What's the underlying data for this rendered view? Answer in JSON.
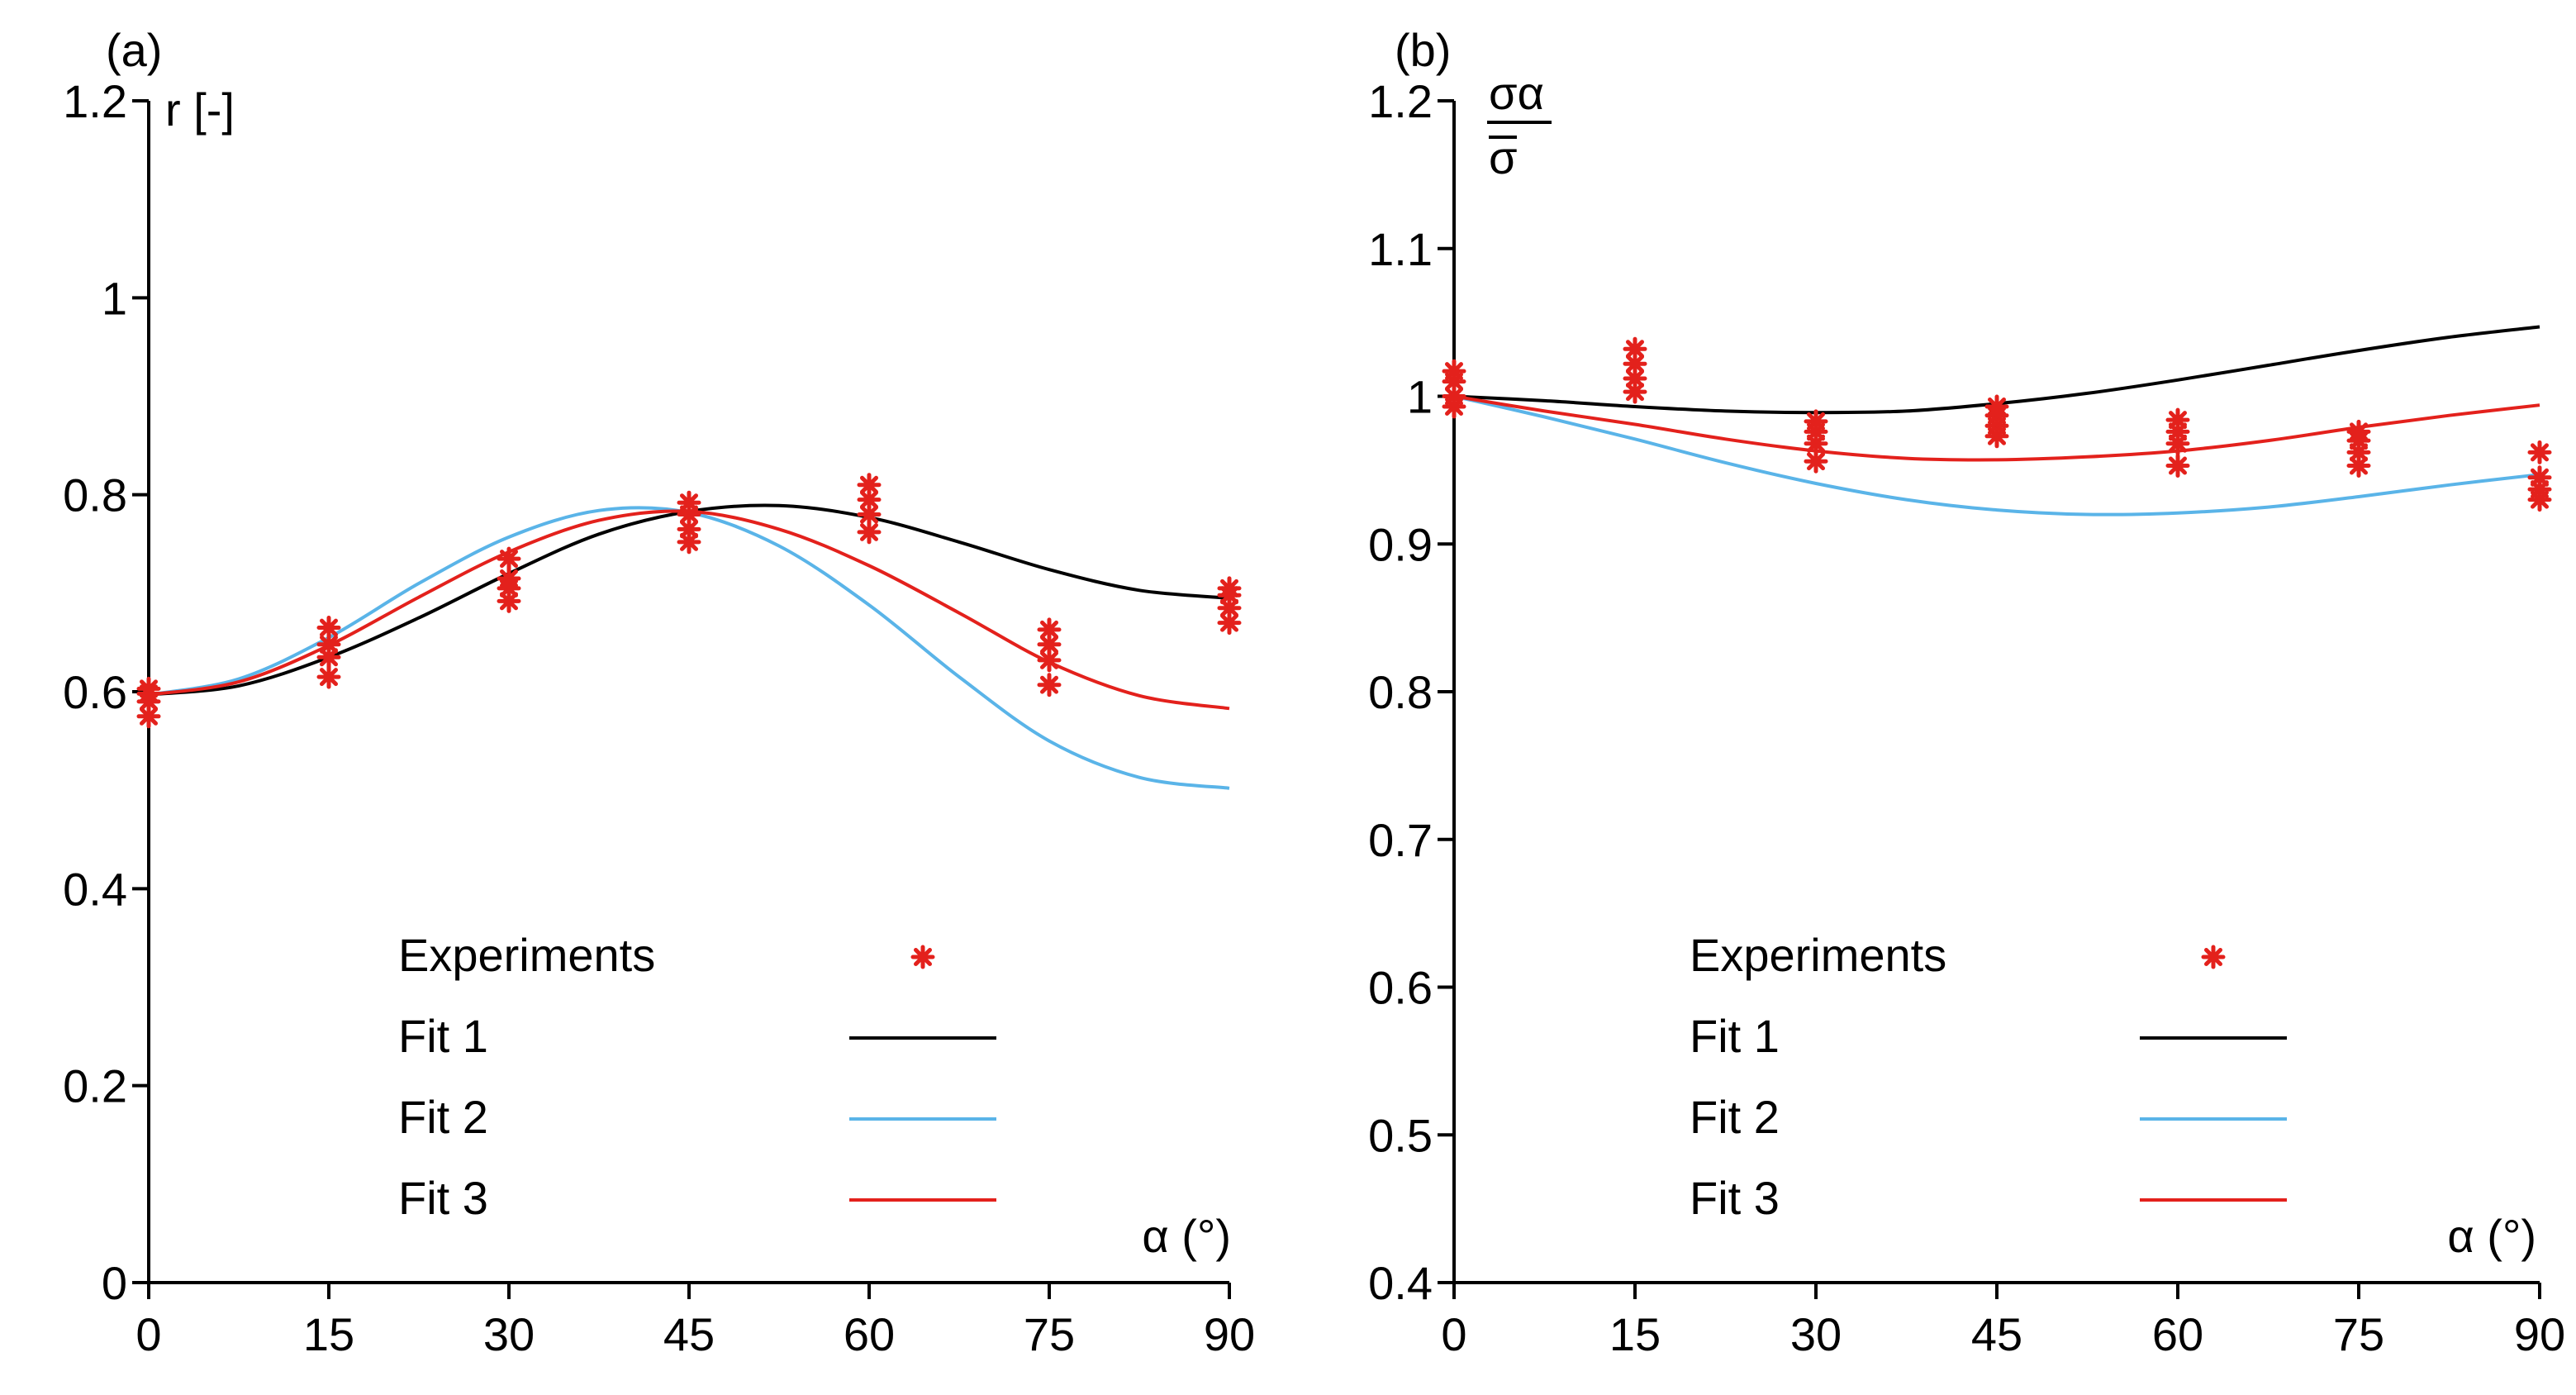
{
  "colors": {
    "experiments": "#e3211c",
    "fit1": "#000000",
    "fit2": "#5ab4e8",
    "fit3": "#e3211c",
    "axis": "#000000"
  },
  "chart_data": [
    {
      "type": "line",
      "panel_label": "(a)",
      "ylabel": "r [-]",
      "xlabel": "α (°)",
      "xlim": [
        0,
        90
      ],
      "ylim": [
        0,
        1.2
      ],
      "x_ticks": [
        0,
        15,
        30,
        45,
        60,
        75,
        90
      ],
      "x_tick_labels": [
        "0",
        "15",
        "30",
        "45",
        "60",
        "75",
        "90"
      ],
      "y_ticks": [
        0,
        0.2,
        0.4,
        0.6,
        0.8,
        1.0,
        1.2
      ],
      "y_tick_labels": [
        "0",
        "0.2",
        "0.4",
        "0.6",
        "0.8",
        "1",
        "1.2"
      ],
      "legend": {
        "placement": "bottom-center",
        "entries": [
          {
            "label": "Experiments",
            "kind": "marker",
            "color_key": "experiments"
          },
          {
            "label": "Fit 1",
            "kind": "line",
            "color_key": "fit1"
          },
          {
            "label": "Fit 2",
            "kind": "line",
            "color_key": "fit2"
          },
          {
            "label": "Fit 3",
            "kind": "line",
            "color_key": "fit3"
          }
        ]
      },
      "experiments": {
        "name": "Experiments",
        "x": [
          0,
          0,
          0,
          0,
          15,
          15,
          15,
          15,
          30,
          30,
          30,
          30,
          45,
          45,
          45,
          45,
          60,
          60,
          60,
          60,
          75,
          75,
          75,
          75,
          90,
          90,
          90,
          90
        ],
        "y": [
          0.575,
          0.59,
          0.598,
          0.603,
          0.615,
          0.635,
          0.648,
          0.665,
          0.692,
          0.705,
          0.715,
          0.735,
          0.752,
          0.765,
          0.78,
          0.792,
          0.762,
          0.78,
          0.795,
          0.81,
          0.607,
          0.632,
          0.648,
          0.663,
          0.67,
          0.685,
          0.698,
          0.705
        ]
      },
      "series": [
        {
          "name": "Fit 1",
          "color_key": "fit1",
          "x": [
            0,
            7.5,
            15,
            22.5,
            30,
            37.5,
            45,
            52.5,
            60,
            67.5,
            75,
            82.5,
            90
          ],
          "y": [
            0.597,
            0.606,
            0.635,
            0.675,
            0.72,
            0.76,
            0.783,
            0.789,
            0.777,
            0.752,
            0.724,
            0.703,
            0.695
          ]
        },
        {
          "name": "Fit 2",
          "color_key": "fit2",
          "x": [
            0,
            7.5,
            15,
            22.5,
            30,
            37.5,
            45,
            52.5,
            60,
            67.5,
            75,
            82.5,
            90
          ],
          "y": [
            0.597,
            0.613,
            0.655,
            0.71,
            0.757,
            0.784,
            0.782,
            0.748,
            0.688,
            0.615,
            0.55,
            0.513,
            0.502
          ]
        },
        {
          "name": "Fit 3",
          "color_key": "fit3",
          "x": [
            0,
            7.5,
            15,
            22.5,
            30,
            37.5,
            45,
            52.5,
            60,
            67.5,
            75,
            82.5,
            90
          ],
          "y": [
            0.597,
            0.61,
            0.647,
            0.696,
            0.742,
            0.774,
            0.783,
            0.765,
            0.728,
            0.68,
            0.63,
            0.596,
            0.583
          ]
        }
      ]
    },
    {
      "type": "line",
      "panel_label": "(b)",
      "ylabel_num": "σα",
      "ylabel_den": "σ",
      "xlabel": "α (°)",
      "xlim": [
        0,
        90
      ],
      "ylim": [
        0.4,
        1.2
      ],
      "x_ticks": [
        0,
        15,
        30,
        45,
        60,
        75,
        90
      ],
      "x_tick_labels": [
        "0",
        "15",
        "30",
        "45",
        "60",
        "75",
        "90"
      ],
      "y_ticks": [
        0.4,
        0.5,
        0.6,
        0.7,
        0.8,
        0.9,
        1.0,
        1.1,
        1.2
      ],
      "y_tick_labels": [
        "0.4",
        "0.5",
        "0.6",
        "0.7",
        "0.8",
        "0.9",
        "1",
        "1.1",
        "1.2"
      ],
      "legend": {
        "placement": "bottom-center",
        "entries": [
          {
            "label": "Experiments",
            "kind": "marker",
            "color_key": "experiments"
          },
          {
            "label": "Fit 1",
            "kind": "line",
            "color_key": "fit1"
          },
          {
            "label": "Fit 2",
            "kind": "line",
            "color_key": "fit2"
          },
          {
            "label": "Fit 3",
            "kind": "line",
            "color_key": "fit3"
          }
        ]
      },
      "experiments": {
        "name": "Experiments",
        "x": [
          0,
          0,
          0,
          0,
          15,
          15,
          15,
          15,
          30,
          30,
          30,
          30,
          45,
          45,
          45,
          45,
          60,
          60,
          60,
          60,
          75,
          75,
          75,
          75,
          90,
          90,
          90,
          90
        ],
        "y": [
          0.993,
          1.0,
          1.01,
          1.017,
          1.003,
          1.012,
          1.022,
          1.032,
          0.956,
          0.968,
          0.976,
          0.983,
          0.973,
          0.98,
          0.987,
          0.993,
          0.953,
          0.968,
          0.976,
          0.984,
          0.953,
          0.962,
          0.97,
          0.976,
          0.93,
          0.937,
          0.945,
          0.962
        ]
      },
      "series": [
        {
          "name": "Fit 1",
          "color_key": "fit1",
          "x": [
            0,
            7.5,
            15,
            22.5,
            30,
            37.5,
            45,
            52.5,
            60,
            67.5,
            75,
            82.5,
            90
          ],
          "y": [
            1.0,
            0.997,
            0.993,
            0.99,
            0.989,
            0.99,
            0.995,
            1.002,
            1.011,
            1.021,
            1.031,
            1.04,
            1.047
          ]
        },
        {
          "name": "Fit 2",
          "color_key": "fit2",
          "x": [
            0,
            7.5,
            15,
            22.5,
            30,
            37.5,
            45,
            52.5,
            60,
            67.5,
            75,
            82.5,
            90
          ],
          "y": [
            1.0,
            0.986,
            0.971,
            0.955,
            0.941,
            0.93,
            0.923,
            0.92,
            0.921,
            0.925,
            0.932,
            0.94,
            0.947
          ]
        },
        {
          "name": "Fit 3",
          "color_key": "fit3",
          "x": [
            0,
            7.5,
            15,
            22.5,
            30,
            37.5,
            45,
            52.5,
            60,
            67.5,
            75,
            82.5,
            90
          ],
          "y": [
            1.0,
            0.99,
            0.981,
            0.971,
            0.963,
            0.958,
            0.957,
            0.959,
            0.963,
            0.97,
            0.979,
            0.987,
            0.994
          ]
        }
      ]
    }
  ]
}
